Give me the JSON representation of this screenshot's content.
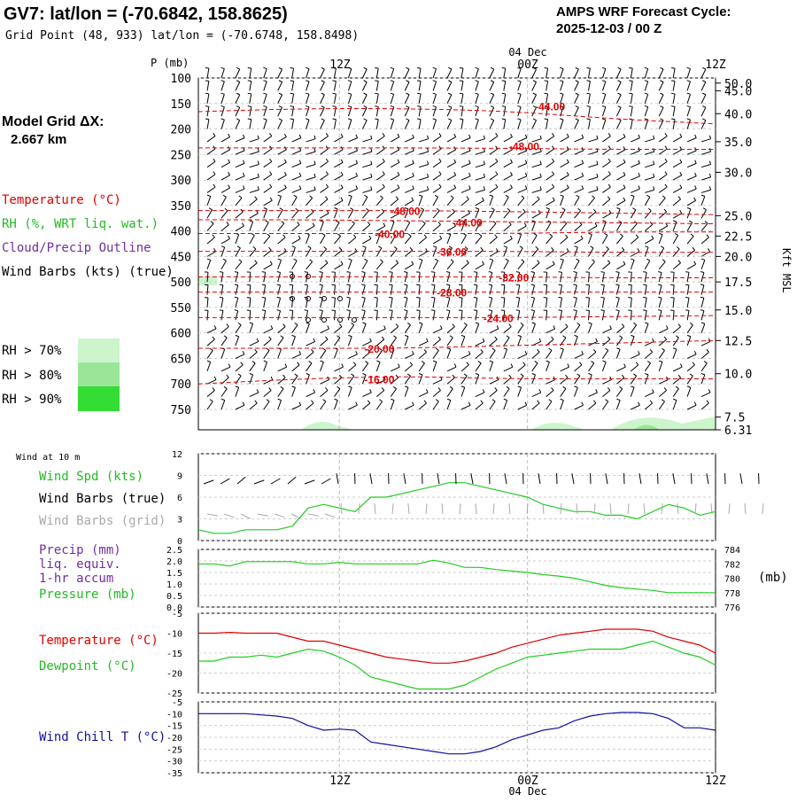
{
  "header": {
    "title": "GV7:  lat/lon = (-70.6842, 158.8625)",
    "grid_point": "Grid Point (48, 933) lat/lon = (-70.6748, 158.8498)",
    "forecast_line1": "AMPS WRF Forecast Cycle:",
    "forecast_line2": "2025-12-03 / 00  Z"
  },
  "time_axis": {
    "date_label": "04 Dec",
    "ticks": [
      "12Z",
      "00Z",
      "12Z"
    ],
    "tick_fractions": [
      0.2727,
      0.6364,
      1.0
    ]
  },
  "model_grid": {
    "line1": "Model Grid ΔX:",
    "line2": "2.667 km"
  },
  "legend": {
    "temperature": "Temperature (°C)",
    "rh": "RH (%, WRT liq. wat.)",
    "cloud": "Cloud/Precip Outline",
    "wind": "Wind Barbs (kts) (true)",
    "rh70": "RH > 70%",
    "rh80": "RH > 80%",
    "rh90": "RH > 90%",
    "rh70_color": "#ccf5cc",
    "rh80_color": "#99e699",
    "rh90_color": "#33dd33"
  },
  "colors": {
    "temp": "#e00000",
    "dew": "#22cc22",
    "wind": "#000000",
    "precip": "#7030a0",
    "chill": "#1010a0",
    "grid_barb": "#aaaaaa"
  },
  "chart_data": [
    {
      "type": "cross-section",
      "ylabel": "P (mb)",
      "right_label": "Kft MSL",
      "pressure_ticks": [
        100,
        150,
        200,
        250,
        300,
        350,
        400,
        450,
        500,
        550,
        600,
        650,
        700,
        750
      ],
      "kft_ticks": [
        "50.0",
        "45.0",
        "40.0",
        "35.0",
        "30.0",
        "25.0",
        "22.5",
        "20.0",
        "17.5",
        "15.0",
        "12.5",
        "10.0",
        "7.5",
        "6.31"
      ],
      "kft_pressures": [
        110,
        125,
        170,
        225,
        285,
        370,
        410,
        450,
        500,
        555,
        615,
        680,
        765,
        790
      ],
      "temperature_contours": [
        {
          "label": "-44.00",
          "pressure": [
            166,
            160,
            160,
            165,
            180,
            190
          ],
          "label_x": 0.68,
          "label_p": 155
        },
        {
          "label": "-48.00",
          "pressure": [
            237,
            237,
            237,
            238,
            240,
            240
          ],
          "label_x": 0.63,
          "label_p": 233
        },
        {
          "label": "-48.00",
          "pressure": [
            360,
            360,
            360,
            362,
            365,
            368
          ],
          "label_x": 0.4,
          "label_p": 360
        },
        {
          "label": "-44.00",
          "pressure": [
            378,
            378,
            380,
            382,
            384,
            386
          ],
          "label_x": 0.52,
          "label_p": 382
        },
        {
          "label": "-40.00",
          "pressure": [
            405,
            405,
            405,
            405,
            402,
            402
          ],
          "label_x": 0.37,
          "label_p": 405
        },
        {
          "label": "-36.00",
          "pressure": [
            440,
            440,
            440,
            440,
            442,
            442
          ],
          "label_x": 0.49,
          "label_p": 440
        },
        {
          "label": "-32.00",
          "pressure": [
            490,
            490,
            490,
            490,
            492,
            492
          ],
          "label_x": 0.61,
          "label_p": 490
        },
        {
          "label": "-28.00",
          "pressure": [
            520,
            520,
            520,
            520,
            520,
            520
          ],
          "label_x": 0.49,
          "label_p": 520
        },
        {
          "label": "-24.00",
          "pressure": [
            570,
            570,
            570,
            570,
            568,
            566
          ],
          "label_x": 0.58,
          "label_p": 570
        },
        {
          "label": "-20.00",
          "pressure": [
            630,
            630,
            630,
            625,
            620,
            615
          ],
          "label_x": 0.35,
          "label_p": 630
        },
        {
          "label": "-16.00",
          "pressure": [
            700,
            690,
            685,
            690,
            690,
            690
          ],
          "label_x": 0.35,
          "label_p": 690
        }
      ]
    },
    {
      "type": "line",
      "title": "Wind at 10 m",
      "labels": [
        "Wind Spd (kts)",
        "Wind Barbs (true)",
        "Wind Barbs (grid)"
      ],
      "ylim": [
        0,
        12
      ],
      "yticks": [
        0,
        3,
        6,
        9,
        12
      ],
      "x": [
        0,
        1,
        2,
        3,
        4,
        5,
        6,
        7,
        8,
        9,
        10,
        11,
        12,
        13,
        14,
        15,
        16,
        17,
        18,
        19,
        20,
        21,
        22,
        23,
        24,
        25,
        26,
        27,
        28,
        29,
        30,
        31,
        32,
        33
      ],
      "series": [
        {
          "name": "Wind Spd (kts)",
          "values": [
            1.5,
            1,
            1,
            1.5,
            1.5,
            1.5,
            2,
            4.5,
            5,
            4.5,
            4,
            6,
            6,
            6.5,
            7,
            7.5,
            8,
            8,
            7.5,
            7,
            6.5,
            6,
            5,
            4.5,
            4,
            4,
            3.5,
            3.5,
            3,
            4,
            5,
            4.5,
            3.5,
            4
          ]
        }
      ]
    },
    {
      "type": "line",
      "labels": [
        "Precip (mm)",
        "liq. equiv.",
        "1-hr accum",
        "Pressure (mb)"
      ],
      "ylim": [
        0,
        2.5
      ],
      "yticks": [
        "0.0",
        "0.5",
        "1.0",
        "1.5",
        "2.0",
        "2.5"
      ],
      "right_ticks": [
        "776",
        "778",
        "780",
        "782",
        "784"
      ],
      "right_unit": "(mb)",
      "right_ylim": [
        776,
        784
      ],
      "x": [
        0,
        1,
        2,
        3,
        4,
        5,
        6,
        7,
        8,
        9,
        10,
        11,
        12,
        13,
        14,
        15,
        16,
        17,
        18,
        19,
        20,
        21,
        22,
        23,
        24,
        25,
        26,
        27,
        28,
        29,
        30,
        31,
        32,
        33
      ],
      "series": [
        {
          "name": "Pressure (mb)",
          "values": [
            782,
            782,
            781.7,
            782.3,
            782.3,
            782.3,
            782.3,
            782,
            782,
            782.2,
            782,
            782,
            782,
            782,
            782,
            782.5,
            782.1,
            781.5,
            781.5,
            781.2,
            781,
            780.8,
            780.5,
            780.3,
            780,
            779.5,
            779,
            778.7,
            778.5,
            778.3,
            778,
            778,
            778,
            778
          ]
        }
      ]
    },
    {
      "type": "line",
      "labels": [
        "Temperature (°C)",
        "Dewpoint (°C)"
      ],
      "ylim": [
        -25,
        -5
      ],
      "yticks": [
        "-5",
        "-10",
        "-15",
        "-20",
        "-25"
      ],
      "x": [
        0,
        1,
        2,
        3,
        4,
        5,
        6,
        7,
        8,
        9,
        10,
        11,
        12,
        13,
        14,
        15,
        16,
        17,
        18,
        19,
        20,
        21,
        22,
        23,
        24,
        25,
        26,
        27,
        28,
        29,
        30,
        31,
        32,
        33
      ],
      "series": [
        {
          "name": "Temperature (°C)",
          "values": [
            -10,
            -10,
            -9.8,
            -10,
            -10,
            -10,
            -11,
            -12,
            -12,
            -13,
            -14,
            -15,
            -16,
            -16.5,
            -17,
            -17.5,
            -17.5,
            -17,
            -16,
            -15,
            -13.5,
            -12.5,
            -11.5,
            -10.5,
            -10,
            -9.5,
            -9,
            -9,
            -9,
            -9.5,
            -11,
            -12,
            -13,
            -15
          ]
        },
        {
          "name": "Dewpoint (°C)",
          "values": [
            -17,
            -17,
            -16,
            -16,
            -15.5,
            -16,
            -15,
            -14,
            -14.5,
            -16,
            -18,
            -21,
            -22,
            -23,
            -24,
            -24,
            -24,
            -23,
            -21,
            -19,
            -17.5,
            -16,
            -15.5,
            -15,
            -14.5,
            -14,
            -14,
            -14,
            -13,
            -12,
            -13.5,
            -15,
            -16,
            -18
          ]
        }
      ]
    },
    {
      "type": "line",
      "labels": [
        "Wind Chill T (°C)"
      ],
      "ylim": [
        -35,
        -5
      ],
      "yticks": [
        "-5",
        "-10",
        "-15",
        "-20",
        "-25",
        "-30",
        "-35"
      ],
      "x": [
        0,
        1,
        2,
        3,
        4,
        5,
        6,
        7,
        8,
        9,
        10,
        11,
        12,
        13,
        14,
        15,
        16,
        17,
        18,
        19,
        20,
        21,
        22,
        23,
        24,
        25,
        26,
        27,
        28,
        29,
        30,
        31,
        32,
        33
      ],
      "series": [
        {
          "name": "Wind Chill T (°C)",
          "values": [
            -10,
            -10,
            -10,
            -10,
            -10.5,
            -11,
            -12,
            -15,
            -17,
            -16.5,
            -17,
            -22,
            -23,
            -24,
            -25,
            -26,
            -27,
            -27,
            -26,
            -24,
            -21,
            -19,
            -17,
            -16,
            -13,
            -11,
            -10,
            -9.5,
            -9.5,
            -10,
            -12,
            -16,
            -16,
            -17
          ]
        }
      ]
    }
  ]
}
